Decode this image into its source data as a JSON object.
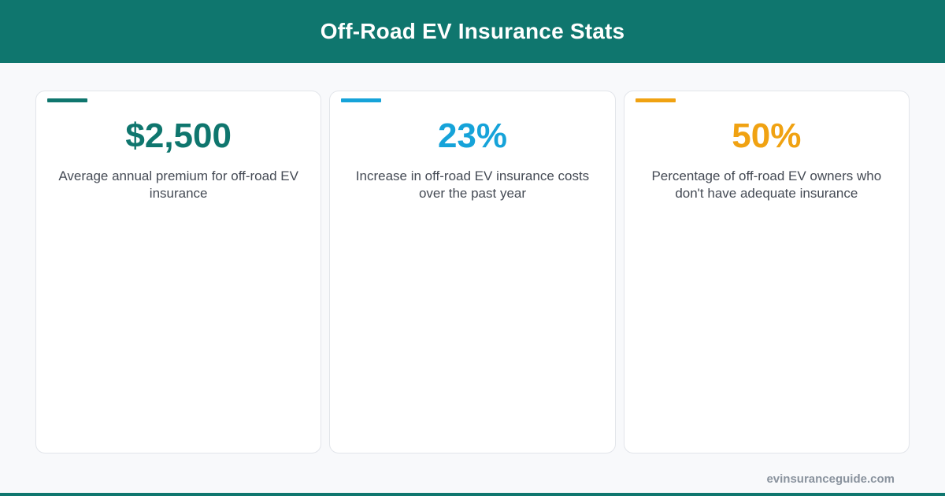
{
  "header": {
    "title": "Off-Road EV Insurance Stats"
  },
  "stats": [
    {
      "value": "$2,500",
      "description": "Average annual premium for off-road EV insurance",
      "color": "#0f766e"
    },
    {
      "value": "23%",
      "description": "Increase in off-road EV insurance costs over the past year",
      "color": "#16a3d9"
    },
    {
      "value": "50%",
      "description": "Percentage of off-road EV owners who don't have adequate insurance",
      "color": "#f0a212"
    }
  ],
  "footer": {
    "site": "evinsuranceguide.com"
  },
  "colors": {
    "header_bg": "#0f766e",
    "page_bg": "#f8f9fb"
  }
}
